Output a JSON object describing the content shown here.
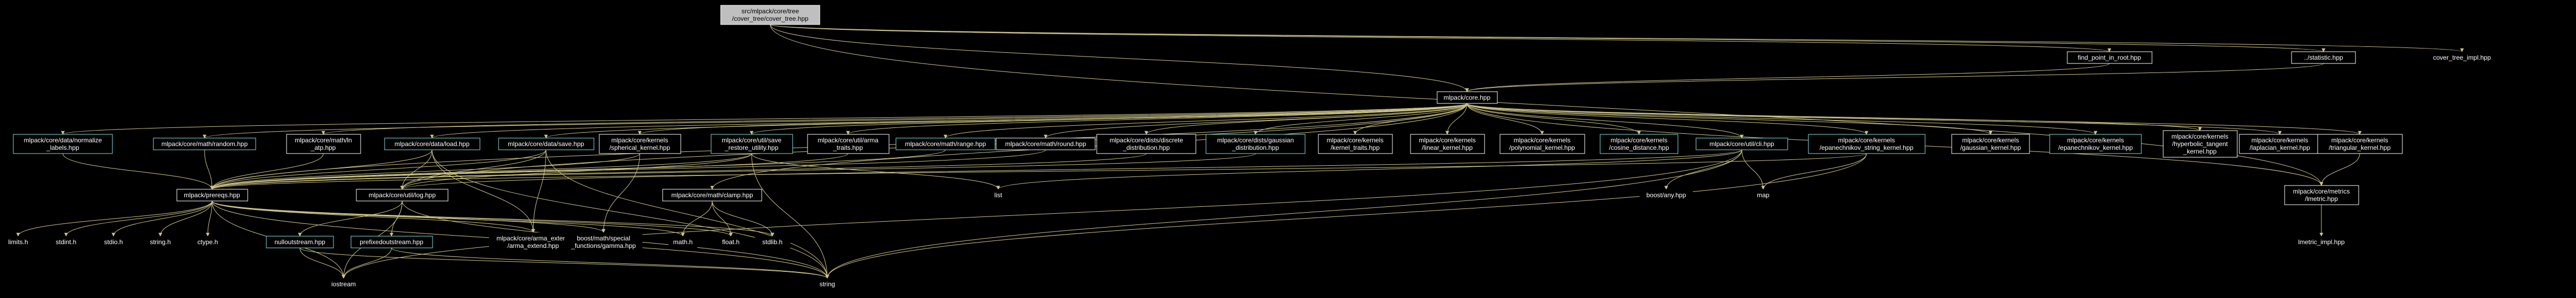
{
  "colors": {
    "background": "#000000",
    "edge": "#cfc787",
    "node_text": "#ffffff",
    "border_default": "#ffffff",
    "border_linked": "#7fe6e6",
    "root_fill": "#bfbfbf",
    "root_text": "#000000"
  },
  "nodes": [
    {
      "id": "n0",
      "lines": [
        "src/mlpack/core/tree",
        "/cover_tree/cover_tree.hpp"
      ],
      "style": "root"
    },
    {
      "id": "n1",
      "lines": [
        "find_point_in_root.hpp"
      ],
      "style": "default"
    },
    {
      "id": "n2",
      "lines": [
        "../statistic.hpp"
      ],
      "style": "default"
    },
    {
      "id": "n3",
      "lines": [
        "cover_tree_impl.hpp"
      ],
      "style": "plain"
    },
    {
      "id": "n4",
      "lines": [
        "mlpack/core.hpp"
      ],
      "style": "default"
    },
    {
      "id": "n5",
      "lines": [
        "mlpack/core/data/normalize",
        "_labels.hpp"
      ],
      "style": "linked"
    },
    {
      "id": "n6",
      "lines": [
        "mlpack/core/math/random.hpp"
      ],
      "style": "linked"
    },
    {
      "id": "n7",
      "lines": [
        "mlpack/core/math/ln",
        "_atp.hpp"
      ],
      "style": "default"
    },
    {
      "id": "n8",
      "lines": [
        "mlpack/core/data/load.hpp"
      ],
      "style": "linked"
    },
    {
      "id": "n9",
      "lines": [
        "mlpack/core/data/save.hpp"
      ],
      "style": "linked"
    },
    {
      "id": "n10",
      "lines": [
        "mlpack/core/kernels",
        "/spherical_kernel.hpp"
      ],
      "style": "default"
    },
    {
      "id": "n11",
      "lines": [
        "mlpack/core/util/save",
        "_restore_utility.hpp"
      ],
      "style": "linked"
    },
    {
      "id": "n12",
      "lines": [
        "mlpack/core/util/arma",
        "_traits.hpp"
      ],
      "style": "default"
    },
    {
      "id": "n13",
      "lines": [
        "mlpack/core/math/range.hpp"
      ],
      "style": "linked"
    },
    {
      "id": "n14",
      "lines": [
        "mlpack/core/math/round.hpp"
      ],
      "style": "default"
    },
    {
      "id": "n15",
      "lines": [
        "mlpack/core/dists/discrete",
        "_distribution.hpp"
      ],
      "style": "default"
    },
    {
      "id": "n16",
      "lines": [
        "mlpack/core/dists/gaussian",
        "_distribution.hpp"
      ],
      "style": "linked"
    },
    {
      "id": "n17",
      "lines": [
        "mlpack/core/kernels",
        "/kernel_traits.hpp"
      ],
      "style": "default"
    },
    {
      "id": "n18",
      "lines": [
        "mlpack/core/kernels",
        "/linear_kernel.hpp"
      ],
      "style": "default"
    },
    {
      "id": "n19",
      "lines": [
        "mlpack/core/kernels",
        "/polynomial_kernel.hpp"
      ],
      "style": "default"
    },
    {
      "id": "n20",
      "lines": [
        "mlpack/core/kernels",
        "/cosine_distance.hpp"
      ],
      "style": "linked"
    },
    {
      "id": "n21",
      "lines": [
        "mlpack/core/util/cli.hpp"
      ],
      "style": "linked"
    },
    {
      "id": "n22",
      "lines": [
        "mlpack/core/kernels",
        "/epanechnikov_string_kernel.hpp"
      ],
      "style": "linked"
    },
    {
      "id": "n23",
      "lines": [
        "mlpack/core/kernels",
        "/gaussian_kernel.hpp"
      ],
      "style": "default"
    },
    {
      "id": "n24",
      "lines": [
        "mlpack/core/kernels",
        "/epanechnikov_kernel.hpp"
      ],
      "style": "linked"
    },
    {
      "id": "n25",
      "lines": [
        "mlpack/core/kernels",
        "/hyperbolic_tangent",
        "_kernel.hpp"
      ],
      "style": "default"
    },
    {
      "id": "n26",
      "lines": [
        "mlpack/core/kernels",
        "/laplacian_kernel.hpp"
      ],
      "style": "default"
    },
    {
      "id": "n27",
      "lines": [
        "mlpack/core/kernels",
        "/triangular_kernel.hpp"
      ],
      "style": "default"
    },
    {
      "id": "n28",
      "lines": [
        "mlpack/prereqs.hpp"
      ],
      "style": "default"
    },
    {
      "id": "n29",
      "lines": [
        "mlpack/core/util/log.hpp"
      ],
      "style": "default"
    },
    {
      "id": "n30",
      "lines": [
        "mlpack/core/math/clamp.hpp"
      ],
      "style": "default"
    },
    {
      "id": "n31",
      "lines": [
        "list"
      ],
      "style": "plain"
    },
    {
      "id": "n32",
      "lines": [
        "boost/any.hpp"
      ],
      "style": "plain"
    },
    {
      "id": "n33",
      "lines": [
        "map"
      ],
      "style": "plain"
    },
    {
      "id": "n34",
      "lines": [
        "mlpack/core/metrics",
        "/lmetric.hpp"
      ],
      "style": "default"
    },
    {
      "id": "n35",
      "lines": [
        "limits.h"
      ],
      "style": "plain"
    },
    {
      "id": "n36",
      "lines": [
        "stdint.h"
      ],
      "style": "plain"
    },
    {
      "id": "n37",
      "lines": [
        "stdio.h"
      ],
      "style": "plain"
    },
    {
      "id": "n38",
      "lines": [
        "string.h"
      ],
      "style": "plain"
    },
    {
      "id": "n39",
      "lines": [
        "ctype.h"
      ],
      "style": "plain"
    },
    {
      "id": "n40",
      "lines": [
        "nulloutstream.hpp"
      ],
      "style": "linked"
    },
    {
      "id": "n41",
      "lines": [
        "prefixedoutstream.hpp"
      ],
      "style": "linked"
    },
    {
      "id": "n42",
      "lines": [
        "mlpack/core/arma_extend",
        "/arma_extend.hpp"
      ],
      "style": "plain"
    },
    {
      "id": "n43",
      "lines": [
        "boost/math/special",
        "_functions/gamma.hpp"
      ],
      "style": "plain"
    },
    {
      "id": "n44",
      "lines": [
        "math.h"
      ],
      "style": "plain"
    },
    {
      "id": "n45",
      "lines": [
        "float.h"
      ],
      "style": "plain"
    },
    {
      "id": "n46",
      "lines": [
        "stdlib.h"
      ],
      "style": "plain"
    },
    {
      "id": "n47",
      "lines": [
        "lmetric_impl.hpp"
      ],
      "style": "plain"
    },
    {
      "id": "n48",
      "lines": [
        "iostream"
      ],
      "style": "plain"
    },
    {
      "id": "n49",
      "lines": [
        "string"
      ],
      "style": "plain"
    }
  ],
  "edges": [
    [
      "n0",
      "n1"
    ],
    [
      "n0",
      "n2"
    ],
    [
      "n0",
      "n3"
    ],
    [
      "n0",
      "n4"
    ],
    [
      "n0",
      "n34"
    ],
    [
      "n1",
      "n4"
    ],
    [
      "n2",
      "n4"
    ],
    [
      "n4",
      "n5"
    ],
    [
      "n4",
      "n6"
    ],
    [
      "n4",
      "n7"
    ],
    [
      "n4",
      "n8"
    ],
    [
      "n4",
      "n9"
    ],
    [
      "n4",
      "n10"
    ],
    [
      "n4",
      "n11"
    ],
    [
      "n4",
      "n12"
    ],
    [
      "n4",
      "n13"
    ],
    [
      "n4",
      "n14"
    ],
    [
      "n4",
      "n15"
    ],
    [
      "n4",
      "n16"
    ],
    [
      "n4",
      "n17"
    ],
    [
      "n4",
      "n18"
    ],
    [
      "n4",
      "n19"
    ],
    [
      "n4",
      "n20"
    ],
    [
      "n4",
      "n21"
    ],
    [
      "n4",
      "n22"
    ],
    [
      "n4",
      "n23"
    ],
    [
      "n4",
      "n24"
    ],
    [
      "n4",
      "n25"
    ],
    [
      "n4",
      "n26"
    ],
    [
      "n4",
      "n27"
    ],
    [
      "n4",
      "n28"
    ],
    [
      "n4",
      "n29"
    ],
    [
      "n4",
      "n30"
    ],
    [
      "n4",
      "n34"
    ],
    [
      "n5",
      "n28"
    ],
    [
      "n6",
      "n28"
    ],
    [
      "n7",
      "n28"
    ],
    [
      "n8",
      "n28"
    ],
    [
      "n8",
      "n29"
    ],
    [
      "n8",
      "n42"
    ],
    [
      "n8",
      "n49"
    ],
    [
      "n9",
      "n28"
    ],
    [
      "n9",
      "n29"
    ],
    [
      "n9",
      "n42"
    ],
    [
      "n9",
      "n49"
    ],
    [
      "n10",
      "n28"
    ],
    [
      "n10",
      "n43"
    ],
    [
      "n11",
      "n28"
    ],
    [
      "n11",
      "n29"
    ],
    [
      "n11",
      "n31"
    ],
    [
      "n11",
      "n49"
    ],
    [
      "n12",
      "n28"
    ],
    [
      "n13",
      "n28"
    ],
    [
      "n14",
      "n28"
    ],
    [
      "n15",
      "n28"
    ],
    [
      "n16",
      "n28"
    ],
    [
      "n21",
      "n29"
    ],
    [
      "n21",
      "n31"
    ],
    [
      "n21",
      "n32"
    ],
    [
      "n21",
      "n33"
    ],
    [
      "n21",
      "n48"
    ],
    [
      "n21",
      "n49"
    ],
    [
      "n22",
      "n28"
    ],
    [
      "n22",
      "n33"
    ],
    [
      "n22",
      "n49"
    ],
    [
      "n27",
      "n34"
    ],
    [
      "n28",
      "n35"
    ],
    [
      "n28",
      "n36"
    ],
    [
      "n28",
      "n37"
    ],
    [
      "n28",
      "n38"
    ],
    [
      "n28",
      "n39"
    ],
    [
      "n28",
      "n42"
    ],
    [
      "n28",
      "n43"
    ],
    [
      "n28",
      "n44"
    ],
    [
      "n28",
      "n45"
    ],
    [
      "n28",
      "n46"
    ],
    [
      "n28",
      "n48"
    ],
    [
      "n28",
      "n49"
    ],
    [
      "n29",
      "n40"
    ],
    [
      "n29",
      "n41"
    ],
    [
      "n29",
      "n48"
    ],
    [
      "n29",
      "n49"
    ],
    [
      "n30",
      "n44"
    ],
    [
      "n30",
      "n45"
    ],
    [
      "n30",
      "n46"
    ],
    [
      "n34",
      "n47"
    ],
    [
      "n40",
      "n48"
    ],
    [
      "n40",
      "n49"
    ],
    [
      "n41",
      "n48"
    ],
    [
      "n41",
      "n49"
    ]
  ]
}
